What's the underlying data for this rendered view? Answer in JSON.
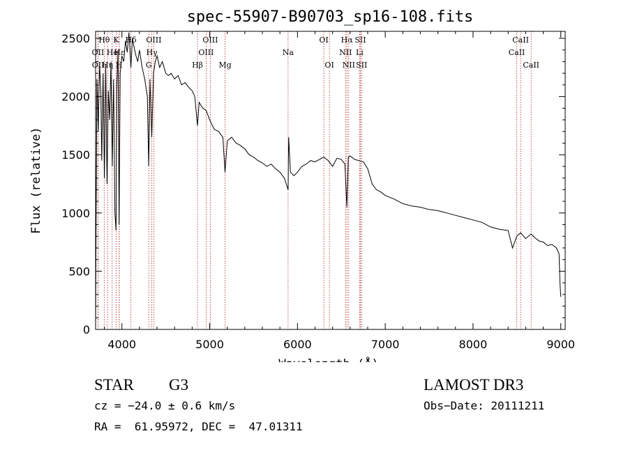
{
  "chart_data": {
    "type": "line",
    "title": "spec-55907-B90703_sp16-108.fits",
    "xlabel": "Wavelength (Å)",
    "ylabel": "Flux (relative)",
    "xlim": [
      3700,
      9050
    ],
    "ylim": [
      0,
      2560
    ],
    "xticks": [
      4000,
      5000,
      6000,
      7000,
      8000,
      9000
    ],
    "yticks": [
      0,
      500,
      1000,
      1500,
      2000,
      2500
    ],
    "series": [
      {
        "name": "flux",
        "x": [
          3700,
          3705,
          3715,
          3730,
          3745,
          3760,
          3770,
          3785,
          3800,
          3815,
          3830,
          3845,
          3860,
          3875,
          3890,
          3905,
          3920,
          3933,
          3940,
          3955,
          3968,
          3980,
          4000,
          4020,
          4040,
          4060,
          4080,
          4102,
          4120,
          4140,
          4160,
          4180,
          4200,
          4230,
          4260,
          4290,
          4305,
          4320,
          4340,
          4360,
          4380,
          4400,
          4430,
          4460,
          4500,
          4530,
          4560,
          4600,
          4640,
          4680,
          4720,
          4760,
          4800,
          4830,
          4861,
          4880,
          4920,
          4960,
          5000,
          5050,
          5100,
          5150,
          5175,
          5200,
          5250,
          5300,
          5350,
          5400,
          5450,
          5500,
          5550,
          5600,
          5650,
          5700,
          5750,
          5800,
          5850,
          5893,
          5900,
          5920,
          5960,
          6000,
          6050,
          6100,
          6150,
          6200,
          6250,
          6300,
          6350,
          6400,
          6450,
          6500,
          6540,
          6563,
          6580,
          6600,
          6650,
          6700,
          6750,
          6800,
          6850,
          6900,
          6950,
          7000,
          7100,
          7200,
          7300,
          7400,
          7500,
          7600,
          7700,
          7800,
          7900,
          8000,
          8100,
          8200,
          8300,
          8400,
          8450,
          8498,
          8542,
          8600,
          8662,
          8700,
          8750,
          8800,
          8850,
          8900,
          8950,
          8980,
          8990,
          9000
        ],
        "y": [
          0,
          800,
          2150,
          1700,
          2280,
          2050,
          1450,
          2200,
          1300,
          2280,
          1250,
          2050,
          1800,
          2300,
          1400,
          2150,
          1000,
          850,
          2050,
          2400,
          900,
          2200,
          2350,
          2300,
          2480,
          2380,
          2550,
          2250,
          2500,
          2420,
          2350,
          2300,
          2400,
          2250,
          2150,
          2000,
          1400,
          2150,
          1650,
          2200,
          2300,
          2350,
          2250,
          2300,
          2200,
          2180,
          2200,
          2150,
          2180,
          2100,
          2120,
          2080,
          2050,
          2000,
          1750,
          1950,
          1900,
          1880,
          1800,
          1720,
          1700,
          1650,
          1350,
          1620,
          1650,
          1600,
          1580,
          1550,
          1500,
          1480,
          1450,
          1430,
          1400,
          1420,
          1380,
          1350,
          1300,
          1200,
          1650,
          1350,
          1320,
          1350,
          1400,
          1420,
          1450,
          1440,
          1460,
          1480,
          1450,
          1400,
          1470,
          1460,
          1420,
          1050,
          1480,
          1490,
          1460,
          1450,
          1440,
          1380,
          1250,
          1200,
          1180,
          1150,
          1120,
          1080,
          1060,
          1050,
          1030,
          1020,
          1000,
          980,
          960,
          940,
          920,
          880,
          860,
          850,
          700,
          800,
          830,
          780,
          820,
          790,
          760,
          750,
          720,
          730,
          700,
          650,
          400,
          280
        ]
      }
    ],
    "lines": [
      {
        "label": "Hθ",
        "x": 3798,
        "row": 1
      },
      {
        "label": "OII",
        "x": 3727,
        "row": 2
      },
      {
        "label": "OII",
        "x": 3729,
        "row": 3
      },
      {
        "label": "He",
        "x": 3889,
        "row": 2
      },
      {
        "label": "Hη",
        "x": 3835,
        "row": 3
      },
      {
        "label": "K",
        "x": 3934,
        "row": 1
      },
      {
        "label": "Hε",
        "x": 3970,
        "row": 2
      },
      {
        "label": "H",
        "x": 3968,
        "row": 3
      },
      {
        "label": "Hδ",
        "x": 4102,
        "row": 1
      },
      {
        "label": "OIII",
        "x": 4363,
        "row": 1
      },
      {
        "label": "Hγ",
        "x": 4341,
        "row": 2
      },
      {
        "label": "G",
        "x": 4305,
        "row": 3
      },
      {
        "label": "Hβ",
        "x": 4861,
        "row": 3
      },
      {
        "label": "OIII",
        "x": 5007,
        "row": 1
      },
      {
        "label": "OIII",
        "x": 4959,
        "row": 2
      },
      {
        "label": "Mg",
        "x": 5175,
        "row": 3
      },
      {
        "label": "Na",
        "x": 5893,
        "row": 2
      },
      {
        "label": "OI",
        "x": 6300,
        "row": 1
      },
      {
        "label": "OI",
        "x": 6364,
        "row": 3
      },
      {
        "label": "Hα",
        "x": 6563,
        "row": 1
      },
      {
        "label": "NII",
        "x": 6548,
        "row": 2
      },
      {
        "label": "NII",
        "x": 6584,
        "row": 3
      },
      {
        "label": "SII",
        "x": 6717,
        "row": 1
      },
      {
        "label": "Li",
        "x": 6708,
        "row": 2
      },
      {
        "label": "SII",
        "x": 6731,
        "row": 3
      },
      {
        "label": "CaII",
        "x": 8542,
        "row": 1
      },
      {
        "label": "CaII",
        "x": 8498,
        "row": 2
      },
      {
        "label": "CaII",
        "x": 8662,
        "row": 3
      }
    ]
  },
  "info": {
    "class": "STAR",
    "subclass": "G3",
    "survey": "LAMOST DR3",
    "cz": "cz = −24.0 ± 0.6 km/s",
    "obs_date": "Obs−Date: 20111211",
    "radec": "RA =  61.95972, DEC =  47.01311"
  }
}
